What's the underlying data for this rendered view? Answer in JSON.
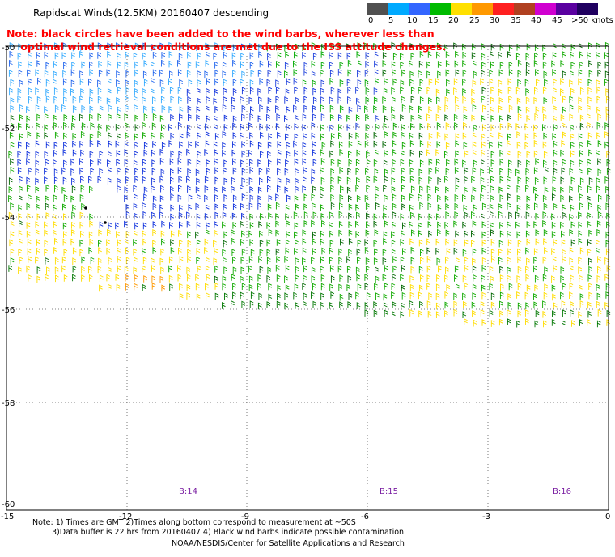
{
  "title": "Rapidscat Winds(12.5KM) 20160407 descending",
  "note_line1": "Note: black circles have been added to the wind barbs, wherever less than",
  "note_line2": "    optimal wind retrieval conditions are met due to the ISS attitude changes.",
  "legend": {
    "labels": [
      "0",
      "5",
      "10",
      "15",
      "20",
      "25",
      "30",
      "35",
      "40",
      "45",
      ">50 knots"
    ],
    "colors": [
      "#505050",
      "#a0a0a0",
      "#00aaff",
      "#3366ff",
      "#00bb00",
      "#ffe000",
      "#ff9900",
      "#ff2020",
      "#b04020",
      "#d000d0",
      "#5a00a0",
      "#200060"
    ]
  },
  "axes": {
    "x_ticks": [
      "-15",
      "-12",
      "-9",
      "-6",
      "-3",
      "0"
    ],
    "y_ticks": [
      "-50",
      "-52",
      "-54",
      "-56",
      "-58",
      "-60"
    ]
  },
  "rev_labels": [
    "B:14",
    "B:15",
    "B:16"
  ],
  "footer": {
    "line1": "Note: 1) Times are GMT 2)Times along bottom correspond to measurement at ~50S",
    "line2": "3)Data buffer is 22 hrs from 20160407 4) Black wind barbs indicate possible contamination",
    "line3": "NOAA/NESDIS/Center for Satellite Applications and Research"
  }
}
